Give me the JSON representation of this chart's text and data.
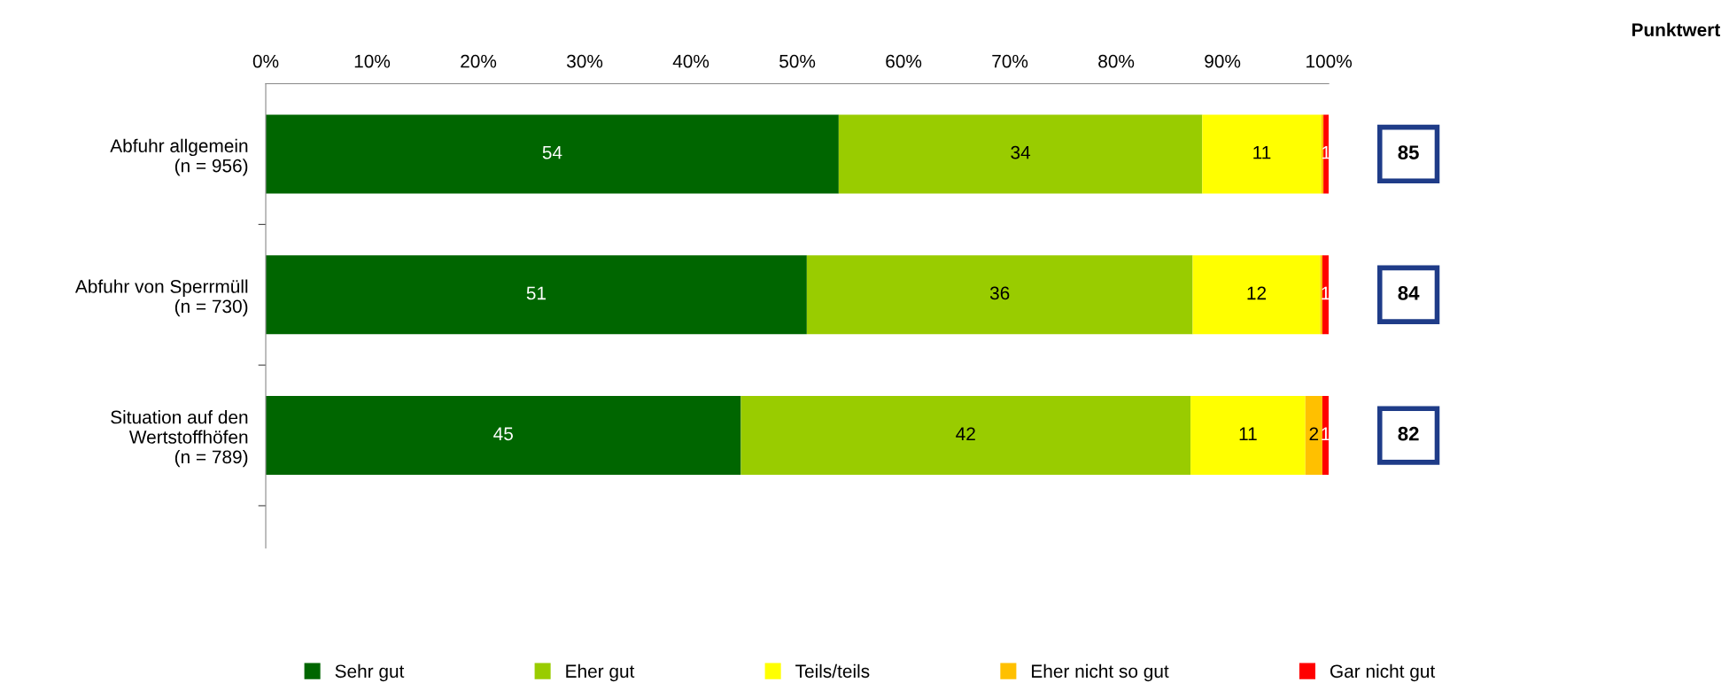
{
  "chart_data": {
    "type": "bar",
    "orientation": "horizontal",
    "stacked": true,
    "categories": [
      "Abfuhr allgemein\n(n = 956)",
      "Abfuhr von Sperrmüll\n(n = 730)",
      "Situation auf den\nWertstoffhöfen\n(n = 789)"
    ],
    "series": [
      {
        "name": "Sehr gut",
        "color": "#006600",
        "values": [
          53.9,
          50.9,
          44.7
        ],
        "value_labels": [
          "54",
          "51",
          "45"
        ]
      },
      {
        "name": "Eher gut",
        "color": "#99cc00",
        "values": [
          34.2,
          36.3,
          42.3
        ],
        "value_labels": [
          "34",
          "36",
          "42"
        ]
      },
      {
        "name": "Teils/teils",
        "color": "#ffff00",
        "values": [
          11.2,
          12.0,
          10.8
        ],
        "value_labels": [
          "11",
          "12",
          "11"
        ]
      },
      {
        "name": "Eher nicht so gut",
        "color": "#ffc000",
        "values": [
          0.2,
          0.2,
          1.6
        ],
        "value_labels": [
          null,
          null,
          "2"
        ]
      },
      {
        "name": "Gar nicht gut",
        "color": "#ff0000",
        "values": [
          0.5,
          0.6,
          0.6
        ],
        "value_labels": [
          "1",
          "1",
          "1"
        ]
      }
    ],
    "xlim": [
      0,
      100
    ],
    "xticks": [
      {
        "value": 0,
        "label": "0%"
      },
      {
        "value": 10,
        "label": "10%"
      },
      {
        "value": 20,
        "label": "20%"
      },
      {
        "value": 30,
        "label": "30%"
      },
      {
        "value": 40,
        "label": "40%"
      },
      {
        "value": 50,
        "label": "50%"
      },
      {
        "value": 60,
        "label": "60%"
      },
      {
        "value": 70,
        "label": "70%"
      },
      {
        "value": 80,
        "label": "80%"
      },
      {
        "value": 90,
        "label": "90%"
      },
      {
        "value": 100,
        "label": "100%"
      }
    ],
    "annotations": [
      "Punktwert",
      "85",
      "84",
      "82"
    ],
    "legend": "bottom",
    "grid": false
  }
}
